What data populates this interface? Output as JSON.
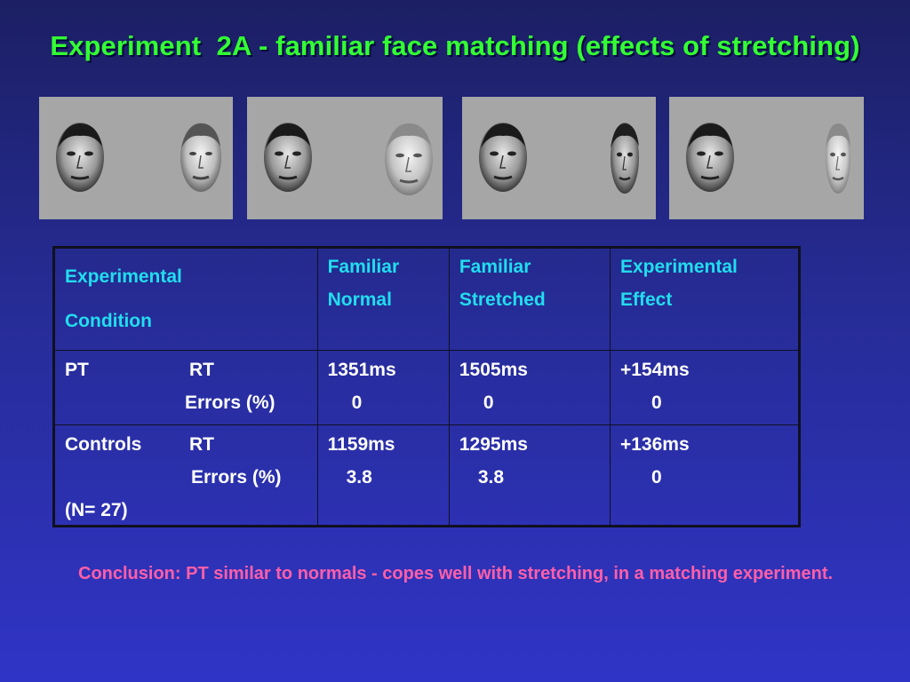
{
  "slide": {
    "title": "Experiment  2A - familiar face matching (effects of stretching)",
    "conclusion": "Conclusion: PT similar to normals - copes well with stretching, in a matching experiment."
  },
  "stimuli": [
    {
      "name": "pair-normal-normal",
      "left_face": "normal",
      "right_face": "normal-light"
    },
    {
      "name": "pair-normal-stretched-wide",
      "left_face": "normal",
      "right_face": "wide-light"
    },
    {
      "name": "pair-normal-stretched-narrow",
      "left_face": "normal",
      "right_face": "narrow"
    },
    {
      "name": "pair-normal-stretched-very-narrow",
      "left_face": "normal",
      "right_face": "very-narrow-light"
    }
  ],
  "table": {
    "header": {
      "condition_line1": "Experimental",
      "condition_line2": "Condition",
      "col2_line1": "Familiar",
      "col2_line2": "Normal",
      "col3_line1": "Familiar",
      "col3_line2": "Stretched",
      "col4_line1": "Experimental",
      "col4_line2": "Effect"
    },
    "rows": [
      {
        "group": "PT",
        "measure_rt": "RT",
        "measure_errors": "Errors (%)",
        "normal_rt": "1351ms",
        "normal_err": "0",
        "stretched_rt": "1505ms",
        "stretched_err": "0",
        "effect_rt": "+154ms",
        "effect_err": "0"
      },
      {
        "group": "Controls",
        "measure_rt": "RT",
        "measure_errors": "Errors (%)",
        "n": "(N= 27)",
        "normal_rt": "1159ms",
        "normal_err": "3.8",
        "stretched_rt": "1295ms",
        "stretched_err": "3.8",
        "effect_rt": "+136ms",
        "effect_err": "0"
      }
    ]
  },
  "colors": {
    "title": "#33ff33",
    "header_text": "#22ddee",
    "body_text": "#ffffff",
    "conclusion": "#ff5fa8",
    "panel": "#a6a6a6"
  }
}
